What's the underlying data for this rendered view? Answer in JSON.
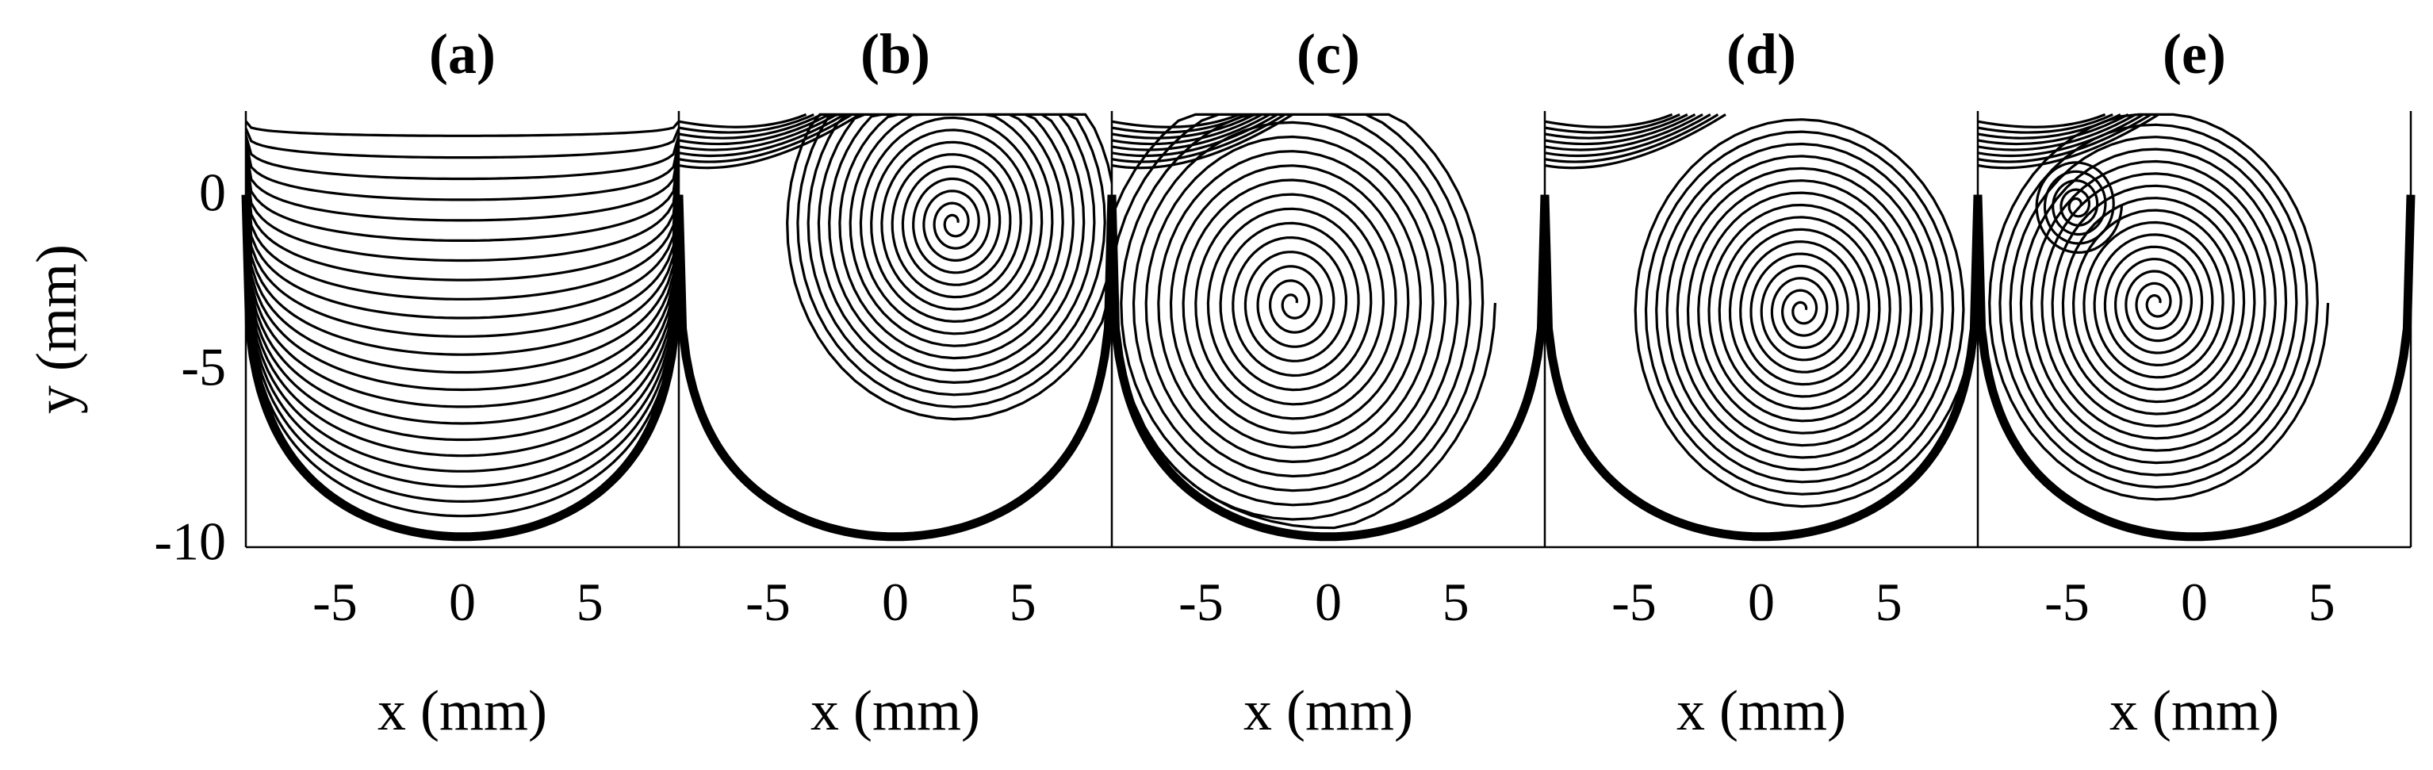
{
  "chart_data": {
    "type": "streamline",
    "panels": [
      {
        "label": "(a)",
        "xlabel": "x (mm)",
        "flow": "v-shaped",
        "vortex_centers": []
      },
      {
        "label": "(b)",
        "xlabel": "x (mm)",
        "flow": "vortex",
        "vortex_centers": [
          [
            2.3,
            -0.7
          ]
        ]
      },
      {
        "label": "(c)",
        "xlabel": "x (mm)",
        "flow": "vortex",
        "vortex_centers": [
          [
            -1.4,
            -3.0
          ]
        ]
      },
      {
        "label": "(d)",
        "xlabel": "x (mm)",
        "flow": "vortex",
        "vortex_centers": [
          [
            1.6,
            -3.2
          ]
        ]
      },
      {
        "label": "(e)",
        "xlabel": "x (mm)",
        "flow": "vortex",
        "vortex_centers": [
          [
            -1.5,
            -3.0
          ],
          [
            -4.6,
            -0.2
          ]
        ]
      }
    ],
    "ylabel": "y (mm)",
    "xticks": [
      "-5",
      "0",
      "5"
    ],
    "yticks": [
      "0",
      "-5",
      "-10"
    ],
    "xlim": [
      -8.5,
      8.5
    ],
    "ylim": [
      -10,
      2.5
    ],
    "wall_profile": {
      "bottom_y": -9.7,
      "rim_y": 0.1,
      "rim_x": 8.5
    },
    "grid": false
  }
}
